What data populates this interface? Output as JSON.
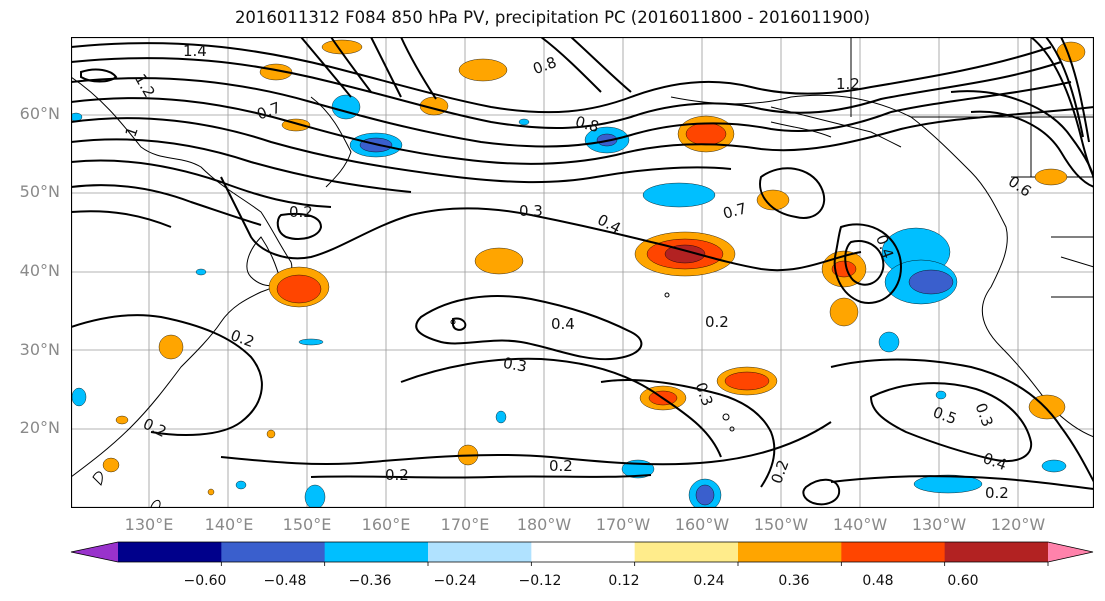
{
  "title": "2016011312 F084 850 hPa PV, precipitation PC (2016011800 - 2016011900)",
  "lat_labels": [
    "60°N",
    "50°N",
    "40°N",
    "30°N",
    "20°N"
  ],
  "lon_labels": [
    "130°E",
    "140°E",
    "150°E",
    "160°E",
    "170°E",
    "180°W",
    "170°W",
    "160°W",
    "150°W",
    "140°W",
    "130°W",
    "120°W"
  ],
  "contour_labels": [
    "1.4",
    "1.2",
    "1",
    "0.8",
    "0.8",
    "1.2",
    "0.7",
    "0.2",
    "0.3",
    "0.4",
    "0.7",
    "0.2",
    "0.4",
    "0.2",
    "0.3",
    "0.3",
    "0.5",
    "0.3",
    "0.2",
    "0.2",
    "0.2",
    "0.2",
    "0.4",
    "0.2",
    "0.4",
    "0.6"
  ],
  "colorbar": {
    "ticks": [
      "−0.60",
      "−0.48",
      "−0.36",
      "−0.24",
      "−0.12",
      "0.12",
      "0.24",
      "0.36",
      "0.48",
      "0.60"
    ],
    "colors": [
      "#9932CC",
      "#00008B",
      "#3A5FCD",
      "#00BFFF",
      "#B0E2FF",
      "#FFFFFF",
      "#FFEC8B",
      "#FFA500",
      "#FF4500",
      "#B22222",
      "#FF82AB"
    ]
  }
}
